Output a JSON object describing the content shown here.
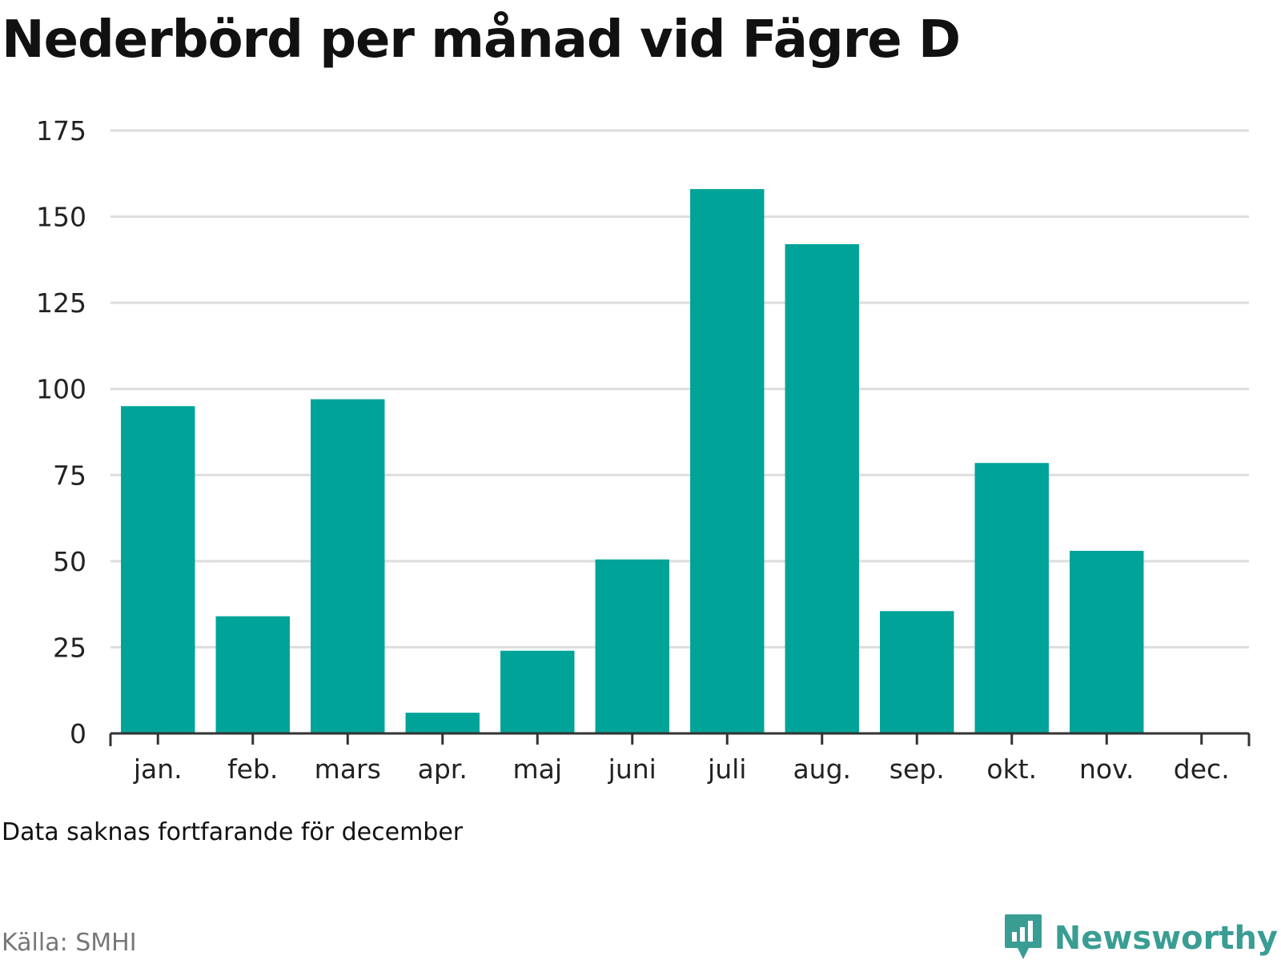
{
  "header": {
    "title": "Nederbörd per månad vid Fägre D"
  },
  "footer": {
    "note": "Data saknas fortfarande för december",
    "source": "Källa: SMHI",
    "brand": "Newsworthy",
    "brand_icon": "newsworthy-logo-icon"
  },
  "colors": {
    "bar": "#00a398",
    "grid": "#dddddd",
    "axis": "#333333",
    "brand": "#3a9d93"
  },
  "chart_data": {
    "type": "bar",
    "title": "Nederbörd per månad vid Fägre D",
    "categories": [
      "jan.",
      "feb.",
      "mars",
      "apr.",
      "maj",
      "juni",
      "juli",
      "aug.",
      "sep.",
      "okt.",
      "nov.",
      "dec."
    ],
    "values": [
      95,
      34,
      97,
      6,
      24,
      50.5,
      158,
      142,
      35.5,
      78.5,
      53,
      null
    ],
    "xlabel": "",
    "ylabel": "",
    "ylim": [
      0,
      175
    ],
    "yticks": [
      0,
      25,
      50,
      75,
      100,
      125,
      150,
      175
    ],
    "grid": true,
    "legend": "none"
  }
}
